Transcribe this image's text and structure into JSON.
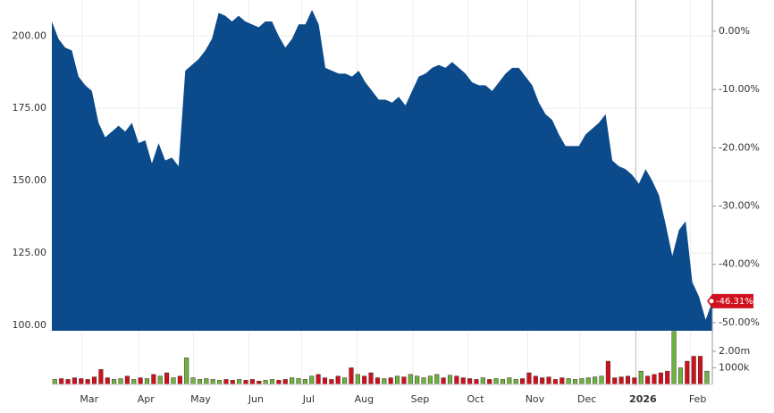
{
  "chart_data": [
    {
      "type": "area",
      "color": "#0b4a8b",
      "grid": true,
      "values": [
        205,
        199,
        196,
        195,
        186,
        183,
        181,
        170,
        165,
        167,
        169,
        167,
        170,
        163,
        164,
        156,
        163,
        157,
        158,
        155,
        188,
        190,
        192,
        195,
        199,
        208,
        207,
        205,
        207,
        205,
        204,
        203,
        205,
        205,
        200,
        196,
        199,
        204,
        204,
        209,
        204,
        189,
        188,
        187,
        187,
        186,
        188,
        184,
        181,
        178,
        178,
        177,
        179,
        176,
        181,
        186,
        187,
        189,
        190,
        189,
        191,
        189,
        187,
        184,
        183,
        183,
        181,
        184,
        187,
        189,
        189,
        186,
        183,
        177,
        173,
        171,
        166,
        162,
        162,
        162,
        166,
        168,
        170,
        173,
        157,
        155,
        154,
        152,
        149,
        154,
        150,
        145,
        135,
        124,
        133,
        136,
        115,
        110,
        102,
        108.3
      ],
      "xlim": [
        0,
        99
      ],
      "xticks": [
        {
          "value": 5.6,
          "label": "Mar"
        },
        {
          "value": 14.1,
          "label": "Apr"
        },
        {
          "value": 22.3,
          "label": "May"
        },
        {
          "value": 30.6,
          "label": "Jun"
        },
        {
          "value": 38.5,
          "label": "Jul"
        },
        {
          "value": 46.8,
          "label": "Aug"
        },
        {
          "value": 55.2,
          "label": "Sep"
        },
        {
          "value": 63.5,
          "label": "Oct"
        },
        {
          "value": 72.4,
          "label": "Nov"
        },
        {
          "value": 80.2,
          "label": "Dec"
        },
        {
          "value": 88.6,
          "label": "2026",
          "bold": true
        },
        {
          "value": 96.8,
          "label": "Feb"
        }
      ],
      "ylim": [
        98.2,
        211.5
      ],
      "yticks": [
        {
          "value": 100,
          "label": "100.00"
        },
        {
          "value": 125,
          "label": "125.00"
        },
        {
          "value": 150,
          "label": "150.00"
        },
        {
          "value": 175,
          "label": "175.00"
        },
        {
          "value": 200,
          "label": "200.00"
        }
      ],
      "y2lim": [
        -51.4,
        4.9
      ],
      "y2ticks": [
        {
          "value": 0,
          "label": "0.00%"
        },
        {
          "value": -10,
          "label": "-10.00%"
        },
        {
          "value": -20,
          "label": "-20.00%"
        },
        {
          "value": -30,
          "label": "-30.00%"
        },
        {
          "value": -40,
          "label": "-40.00%"
        },
        {
          "value": -50,
          "label": "-50.00%"
        }
      ],
      "last_label": {
        "value": -46.31,
        "label": "-46.31%",
        "color": "#d0101e"
      }
    },
    {
      "type": "bar",
      "up_color": "#6cb33f",
      "down_color": "#d0101e",
      "values": [
        0.3,
        0.35,
        0.3,
        0.4,
        0.35,
        0.3,
        0.45,
        0.9,
        0.4,
        0.3,
        0.35,
        0.5,
        0.3,
        0.4,
        0.35,
        0.6,
        0.5,
        0.7,
        0.4,
        0.5,
        1.6,
        0.4,
        0.3,
        0.35,
        0.3,
        0.25,
        0.3,
        0.25,
        0.3,
        0.25,
        0.3,
        0.2,
        0.25,
        0.3,
        0.25,
        0.3,
        0.4,
        0.35,
        0.3,
        0.5,
        0.6,
        0.4,
        0.3,
        0.5,
        0.4,
        1.0,
        0.6,
        0.5,
        0.7,
        0.4,
        0.35,
        0.4,
        0.5,
        0.45,
        0.6,
        0.5,
        0.4,
        0.5,
        0.6,
        0.4,
        0.55,
        0.5,
        0.4,
        0.35,
        0.3,
        0.4,
        0.3,
        0.35,
        0.3,
        0.4,
        0.3,
        0.35,
        0.7,
        0.5,
        0.4,
        0.45,
        0.3,
        0.4,
        0.35,
        0.3,
        0.35,
        0.4,
        0.45,
        0.5,
        1.4,
        0.4,
        0.45,
        0.5,
        0.4,
        0.8,
        0.5,
        0.6,
        0.7,
        0.8,
        3.2,
        1.0,
        1.4,
        1.7,
        1.7,
        0.8
      ],
      "ylim": [
        0,
        3.24
      ],
      "yticks": [
        {
          "value": 1,
          "label": "1000k"
        },
        {
          "value": 2,
          "label": "2.00m"
        }
      ]
    }
  ]
}
